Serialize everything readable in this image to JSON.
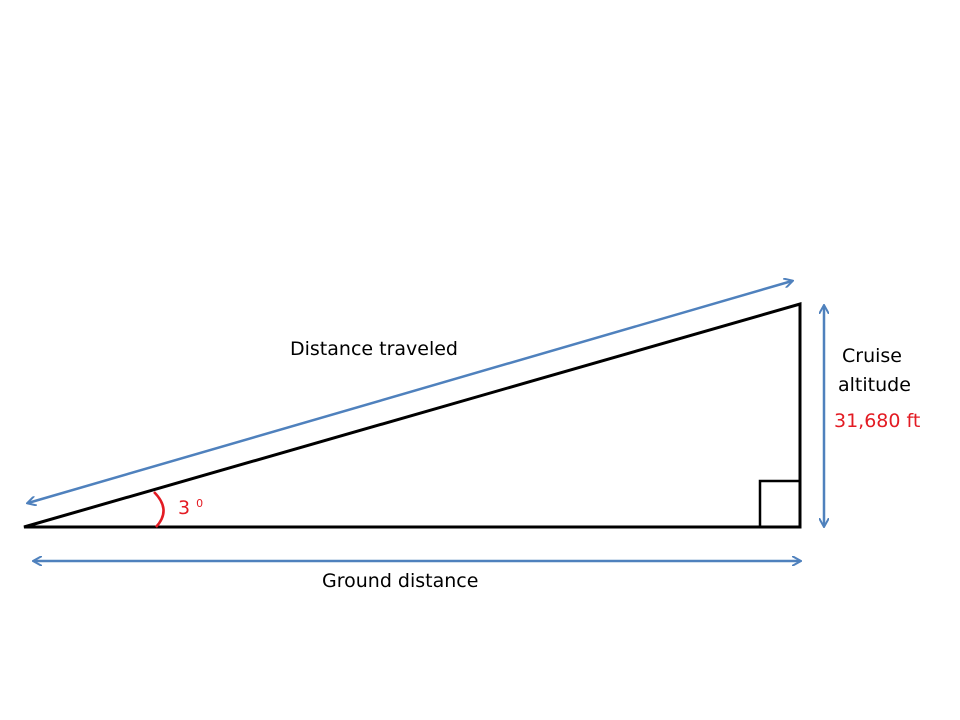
{
  "labels": {
    "hypotenuse": "Distance traveled",
    "base": "Ground distance",
    "height_line1": "Cruise",
    "height_line2": "altitude",
    "height_value": "31,680 ft",
    "angle_value": "3",
    "angle_unit": "0"
  },
  "colors": {
    "triangle": "#000000",
    "arrow": "#4F81BD",
    "highlight": "#E31B23"
  }
}
